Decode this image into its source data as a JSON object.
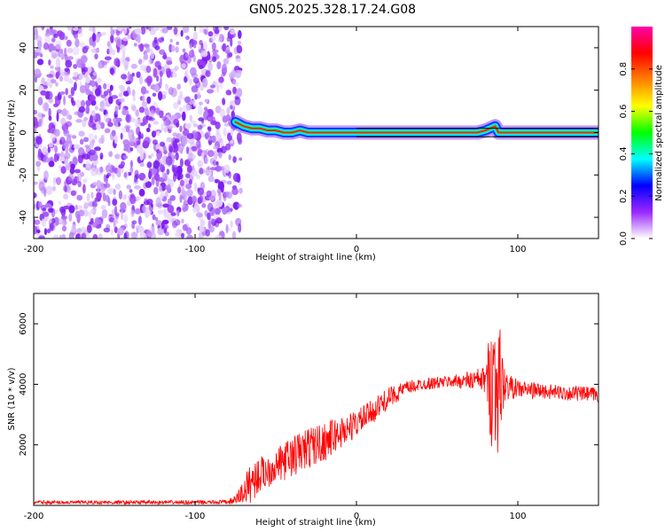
{
  "title": "GN05.2025.328.17.24.G08",
  "chart_data": [
    {
      "type": "heatmap",
      "name": "spectrogram",
      "xlabel": "Height of straight line (km)",
      "ylabel": "Frequency (Hz)",
      "xlim": [
        -200,
        150
      ],
      "ylim": [
        -50,
        50
      ],
      "xticks": [
        -200,
        -100,
        0,
        100
      ],
      "yticks": [
        -40,
        -20,
        0,
        20,
        40
      ],
      "noise_region_x": [
        -200,
        -75
      ],
      "ridge": {
        "x": [
          -75,
          -70,
          -65,
          -60,
          -55,
          -50,
          -45,
          -40,
          -35,
          -30,
          -25,
          -20,
          -15,
          -10,
          -5,
          0,
          10,
          20,
          40,
          60,
          75,
          80,
          83,
          86,
          88,
          90,
          100,
          120,
          150
        ],
        "freq": [
          5,
          3,
          2,
          2,
          1,
          1,
          0,
          0,
          1,
          0,
          0,
          0,
          0,
          0,
          0,
          0,
          0,
          0,
          0,
          0,
          0,
          1,
          2,
          3,
          0,
          0,
          0,
          0,
          0
        ]
      }
    },
    {
      "type": "colorbar",
      "label": "Normalized spectral amplitude",
      "range": [
        0,
        1
      ],
      "ticks": [
        0.0,
        0.2,
        0.4,
        0.6,
        0.8
      ],
      "tick_labels": [
        "0.0",
        "0.2",
        "0.4",
        "0.6",
        "0.8"
      ],
      "colors": [
        "#ffffff",
        "#9a28ff",
        "#0000ff",
        "#00ffff",
        "#00ff00",
        "#ffff00",
        "#ff8000",
        "#ff0000",
        "#ff00aa"
      ]
    },
    {
      "type": "line",
      "name": "snr",
      "xlabel": "Height of straight line (km)",
      "ylabel": "SNR (10 * v/v)",
      "xlim": [
        -200,
        150
      ],
      "ylim": [
        0,
        7000
      ],
      "xticks": [
        -200,
        -100,
        0,
        100
      ],
      "yticks": [
        2000,
        4000,
        6000
      ],
      "color": "#ff0000",
      "envelope": {
        "x": [
          -200,
          -150,
          -100,
          -80,
          -75,
          -70,
          -65,
          -60,
          -50,
          -40,
          -30,
          -20,
          -10,
          0,
          10,
          20,
          30,
          40,
          60,
          80,
          84,
          86,
          88,
          90,
          92,
          100,
          120,
          150
        ],
        "mean": [
          100,
          100,
          100,
          110,
          180,
          450,
          800,
          1000,
          1300,
          1600,
          1900,
          2100,
          2400,
          2700,
          3100,
          3550,
          3850,
          4000,
          4100,
          4150,
          4150,
          4100,
          4050,
          4000,
          3950,
          3850,
          3750,
          3650
        ],
        "spread": [
          60,
          60,
          60,
          70,
          150,
          450,
          700,
          600,
          550,
          700,
          700,
          650,
          550,
          450,
          400,
          350,
          250,
          200,
          200,
          450,
          2400,
          2600,
          2300,
          1500,
          500,
          300,
          250,
          250
        ]
      }
    }
  ]
}
